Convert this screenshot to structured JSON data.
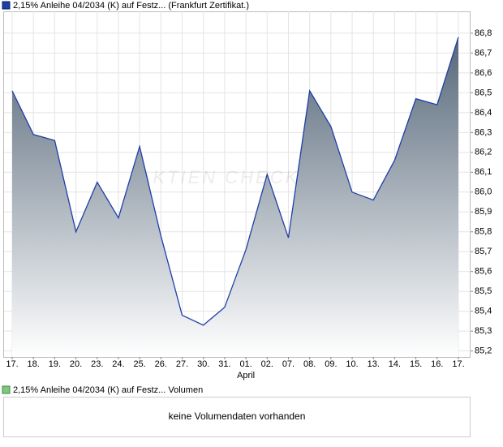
{
  "chart_data": {
    "type": "area",
    "legend": "2,15% Anleihe 04/2034 (K) auf Festz... (Frankfurt Zertifikat.)",
    "watermark": "AKTIEN CHECK",
    "categories": [
      "17.",
      "18.",
      "19.",
      "20.",
      "23.",
      "24.",
      "25.",
      "26.",
      "27.",
      "30.",
      "31.",
      "01.",
      "02.",
      "07.",
      "08.",
      "09.",
      "10.",
      "13.",
      "14.",
      "15.",
      "16.",
      "17."
    ],
    "month_label": "April",
    "series": [
      {
        "name": "2,15% Anleihe 04/2034 (K) auf Festz... (Frankfurt Zertifikat.)",
        "color": "#1f3fa8",
        "values": [
          86.51,
          86.29,
          86.26,
          85.8,
          86.05,
          85.87,
          86.23,
          85.78,
          85.38,
          85.33,
          85.42,
          85.71,
          86.09,
          85.77,
          86.51,
          86.33,
          86.0,
          85.96,
          86.16,
          86.47,
          86.44,
          86.78
        ]
      }
    ],
    "ylim": [
      85.17,
      86.91
    ],
    "yticks": [
      {
        "value": 85.2,
        "label": "85,2"
      },
      {
        "value": 85.3,
        "label": "85,3"
      },
      {
        "value": 85.4,
        "label": "85,4"
      },
      {
        "value": 85.5,
        "label": "85,5"
      },
      {
        "value": 85.6,
        "label": "85,6"
      },
      {
        "value": 85.7,
        "label": "85,7"
      },
      {
        "value": 85.8,
        "label": "85,8"
      },
      {
        "value": 85.9,
        "label": "85,9"
      },
      {
        "value": 86.0,
        "label": "86,0"
      },
      {
        "value": 86.1,
        "label": "86,1"
      },
      {
        "value": 86.2,
        "label": "86,2"
      },
      {
        "value": 86.3,
        "label": "86,3"
      },
      {
        "value": 86.4,
        "label": "86,4"
      },
      {
        "value": 86.5,
        "label": "86,5"
      },
      {
        "value": 86.6,
        "label": "86,6"
      },
      {
        "value": 86.7,
        "label": "86,7"
      },
      {
        "value": 86.8,
        "label": "86,8"
      }
    ],
    "grid": true,
    "volume_legend": "2,15% Anleihe 04/2034 (K) auf Festz... Volumen",
    "volume_message": "keine Volumendaten vorhanden"
  }
}
